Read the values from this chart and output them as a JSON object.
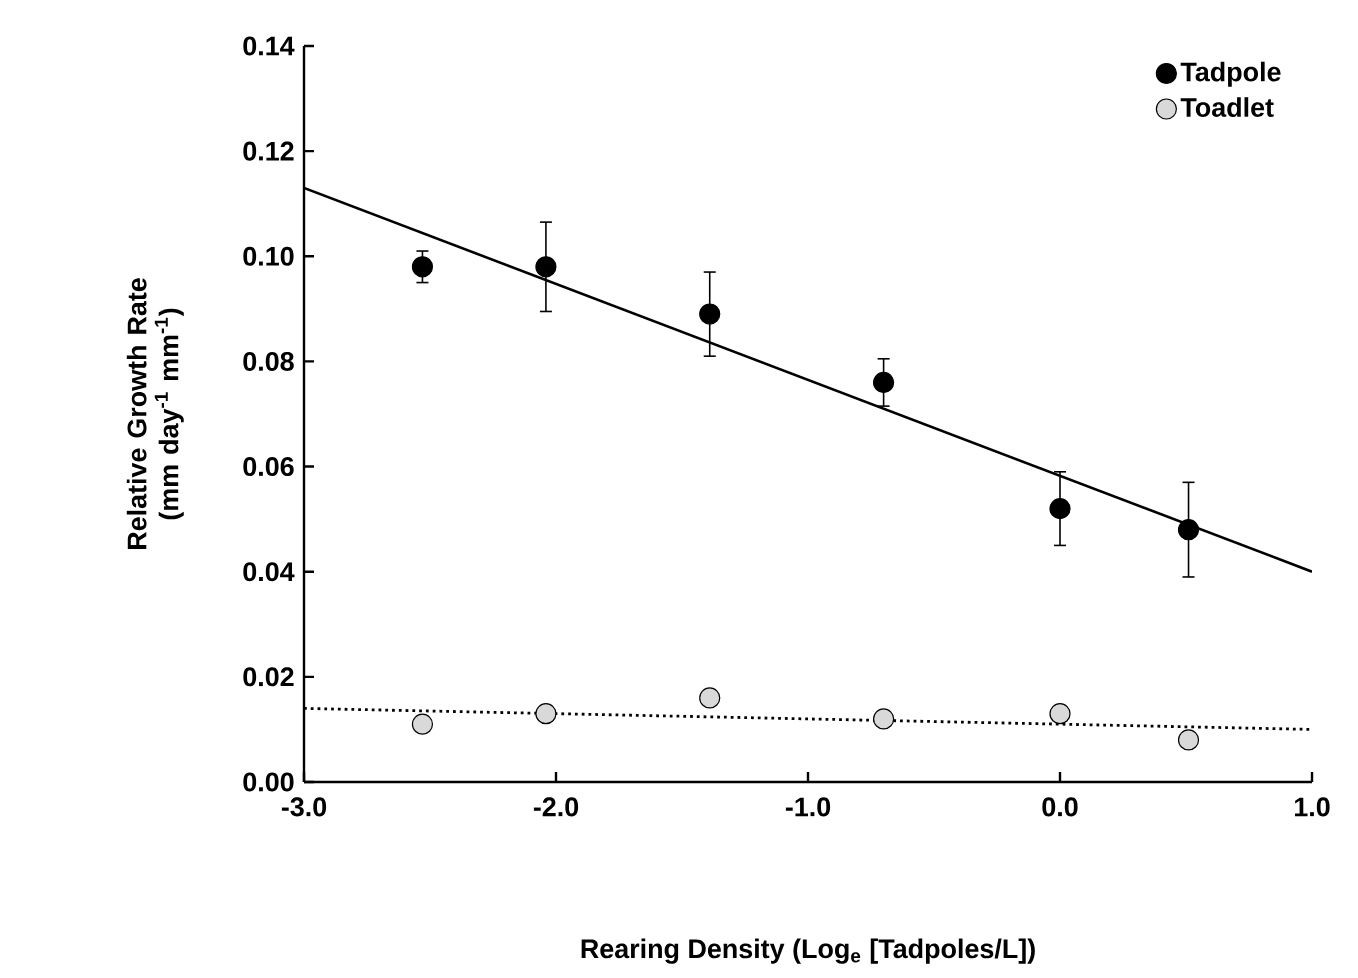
{
  "chart_data": {
    "type": "scatter",
    "xlabel": "Rearing Density (Log$_{e}$ [Tadpoles/L])",
    "ylabel": "Relative Growth Rate (mm day$^{-1}$ mm$^{-1}$)",
    "xlim": [
      -3,
      1
    ],
    "ylim": [
      0,
      0.14
    ],
    "xticks": [
      {
        "value": -3,
        "label": "-3.0"
      },
      {
        "value": -2,
        "label": "-2.0"
      },
      {
        "value": -1,
        "label": "-1.0"
      },
      {
        "value": 0,
        "label": "0.0"
      },
      {
        "value": 1,
        "label": "1.0"
      }
    ],
    "yticks": [
      {
        "value": 0,
        "label": "0.00"
      },
      {
        "value": 0.02,
        "label": "0.02"
      },
      {
        "value": 0.04,
        "label": "0.04"
      },
      {
        "value": 0.06,
        "label": "0.06"
      },
      {
        "value": 0.08,
        "label": "0.08"
      },
      {
        "value": 0.1,
        "label": "0.10"
      },
      {
        "value": 0.12,
        "label": "0.12"
      },
      {
        "value": 0.14,
        "label": "0.14"
      }
    ],
    "grid": false,
    "legend": "top right",
    "marker": "circle",
    "series": [
      {
        "name": "Tadpole",
        "color": "#000000",
        "x": [
          -2.53,
          -2.04,
          -1.39,
          -0.7,
          0.0,
          0.51
        ],
        "values": [
          0.098,
          0.098,
          0.089,
          0.076,
          0.052,
          0.048
        ],
        "errors": [
          0.003,
          0.0085,
          0.008,
          0.0045,
          0.007,
          0.009
        ]
      },
      {
        "name": "Toadlet",
        "color": "#d9d9d9",
        "x": [
          -2.53,
          -2.04,
          -1.39,
          -0.7,
          0.0,
          0.51
        ],
        "values": [
          0.011,
          0.013,
          0.016,
          0.012,
          0.013,
          0.008
        ]
      },
      {
        "type": "line",
        "color": "#000000",
        "line_style": "solid",
        "marker": "none",
        "x": [
          -3,
          1
        ],
        "values": [
          0.113,
          0.04
        ]
      },
      {
        "type": "line",
        "color": "#000000",
        "line_style": "dotted",
        "marker": "none",
        "x": [
          -3,
          1
        ],
        "values": [
          0.014,
          0.01
        ]
      }
    ]
  }
}
